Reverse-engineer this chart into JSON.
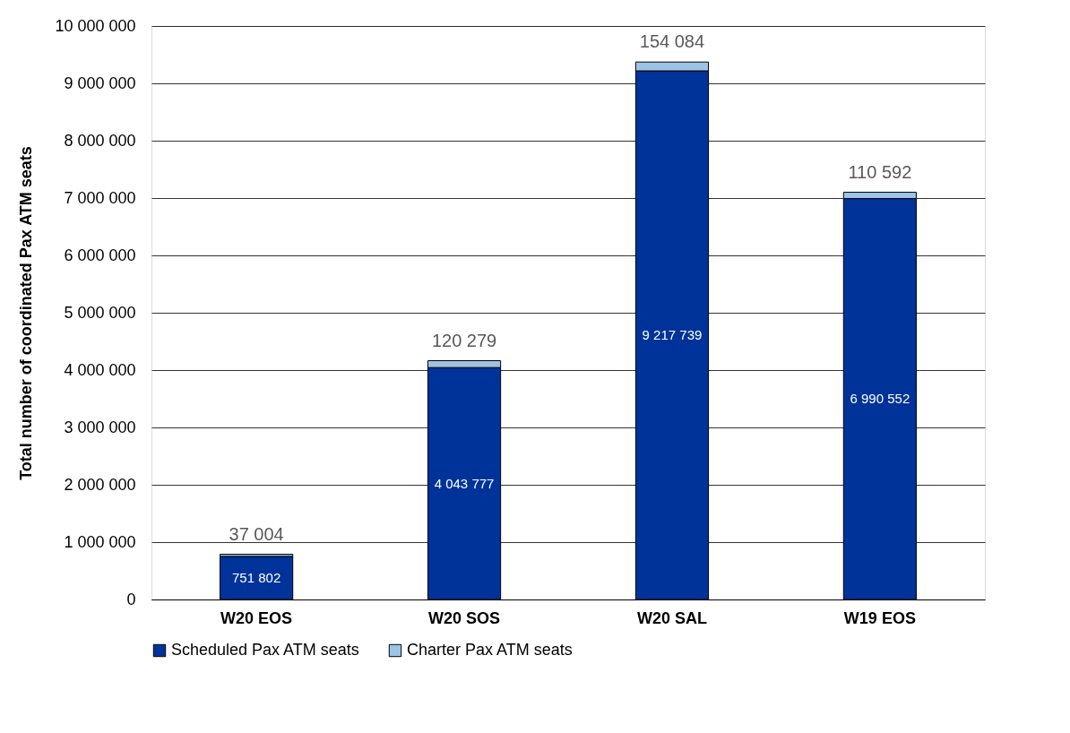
{
  "chart_data": {
    "type": "bar",
    "stacked": true,
    "ylabel": "Total number of coordinated Pax ATM seats",
    "categories": [
      "W20 EOS",
      "W20 SOS",
      "W20 SAL",
      "W19 EOS"
    ],
    "series": [
      {
        "name": "Scheduled Pax ATM seats",
        "color": "#003399",
        "values": [
          751802,
          4043777,
          9217739,
          6990552
        ],
        "value_labels": [
          "751 802",
          "4 043 777",
          "9 217 739",
          "6 990 552"
        ]
      },
      {
        "name": "Charter Pax ATM seats",
        "color": "#9dc3e6",
        "values": [
          37004,
          120279,
          154084,
          110592
        ],
        "value_labels": [
          "37 004",
          "120 279",
          "154 084",
          "110 592"
        ]
      }
    ],
    "ylim": [
      0,
      10000000
    ],
    "yticks": [
      0,
      {
        "value": 1000000,
        "label": "1 000 000"
      },
      {
        "value": 2000000,
        "label": "2 000 000"
      },
      {
        "value": 3000000,
        "label": "3 000 000"
      },
      {
        "value": 4000000,
        "label": "4 000 000"
      },
      {
        "value": 5000000,
        "label": "5 000 000"
      },
      {
        "value": 6000000,
        "label": "6 000 000"
      },
      {
        "value": 7000000,
        "label": "7 000 000"
      },
      {
        "value": 8000000,
        "label": "8 000 000"
      },
      {
        "value": 9000000,
        "label": "9 000 000"
      },
      {
        "value": 10000000,
        "label": "10 000 000"
      }
    ],
    "grid": "y",
    "legend": "bottom"
  }
}
